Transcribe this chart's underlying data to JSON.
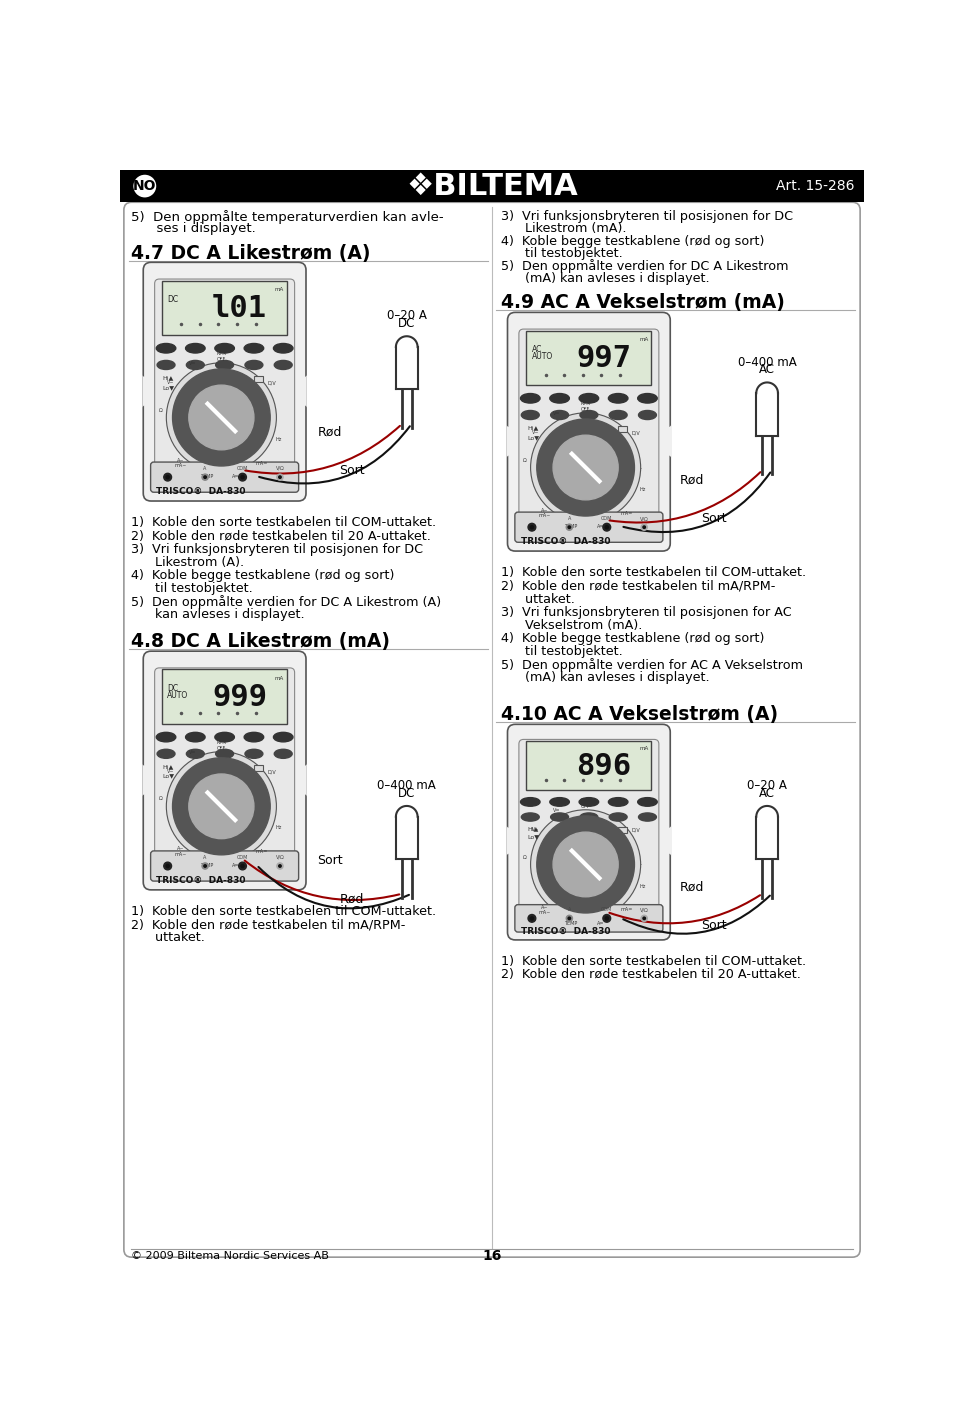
{
  "background_color": "#ffffff",
  "header_bg": "#000000",
  "header_text_color": "#ffffff",
  "header_logo": "❖BILTEMA",
  "header_no": "NO",
  "header_art": "Art. 15-286",
  "footer_text": "© 2009 Biltema Nordic Services AB",
  "footer_page": "16",
  "body_bg": "#ffffff",
  "section_47_title": "4.7 DC A Likestrom (A)",
  "section_48_title": "4.8 DC A Likestrom (mA)",
  "section_49_title": "4.9 AC A Vekselstrom (mA)",
  "section_410_title": "4.10 AC A Vekselstrom (A)",
  "section_47_title_display": "4.7 DC A Likeststrøm (A)",
  "section_48_title_display": "4.8 DC A Likeststrøm (mA)",
  "section_49_title_display": "4.9 AC A Vekselstrøm (mA)",
  "section_410_title_display": "4.10 AC A Vekselstrøm (A)",
  "top_left_line1": "5)  Den oppmålte temperaturverdien kan avle-",
  "top_left_line2": "      ses i displayet.",
  "top_right_lines": [
    "3)  Vri funksjonsbryteren til posisjonen for DC",
    "      Likestrom (mA).",
    "4)  Koble begge testkablene (rød og sort)",
    "      til testobjektet.",
    "5)  Den oppmålte verdien for DC A Likestrom",
    "      (mA) kan avleses i displayet."
  ],
  "list_47": [
    "1)  Koble den sorte testkabelen til COM-uttaket.",
    "2)  Koble den røde testkabelen til 20 A-uttaket.",
    "3)  Vri funksjonsbryteren til posisjonen for DC",
    "      Likestrom (A).",
    "4)  Koble begge testkablene (rød og sort)",
    "      til testobjektet.",
    "5)  Den oppmålte verdien for DC A Likestrom (A)",
    "      kan avleses i displayet."
  ],
  "list_48": [
    "1)  Koble den sorte testkabelen til COM-uttaket.",
    "2)  Koble den røde testkabelen til mA/RPM-",
    "      uttaket."
  ],
  "list_49": [
    "1)  Koble den sorte testkabelen til COM-uttaket.",
    "2)  Koble den røde testkabelen til mA/RPM-",
    "      uttaket.",
    "3)  Vri funksjonsbryteren til posisjonen for AC",
    "      Vekselstrom (mA).",
    "4)  Koble begge testkablene (rød og sort)",
    "      til testobjektet.",
    "5)  Den oppmålte verdien for AC A Vekselstrom",
    "      (mA) kan avleses i displayet."
  ],
  "list_410": [
    "1)  Koble den sorte testkabelen til COM-uttaket.",
    "2)  Koble den røde testkabelen til 20 A-uttaket."
  ],
  "label_0_20A_DC": "0–20 A\nDC",
  "label_0_400mA_DC": "0–400 mA\nDC",
  "label_0_400mA_AC": "0–400 mA\nAC",
  "label_0_20A_AC": "0–20 A\nAC",
  "display_47": "l01",
  "display_48": "999",
  "display_49": "997",
  "display_410": "896",
  "display_tag_47": "DC",
  "display_tag_48": "DC\nAUTO",
  "display_tag_49": "AC\nAUTO",
  "display_tag_410": ""
}
